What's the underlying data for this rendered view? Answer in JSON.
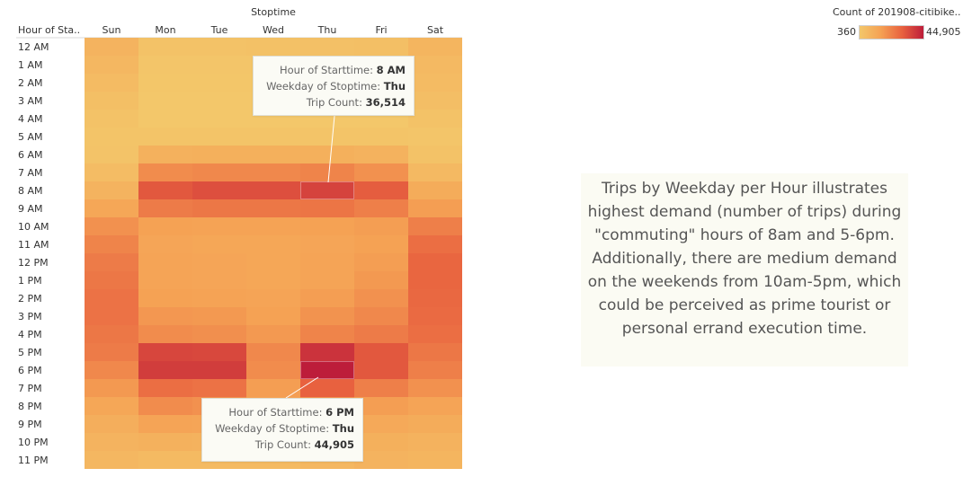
{
  "header": {
    "column_group_title": "Stoptime",
    "row_header": "Hour of Sta.."
  },
  "legend": {
    "title": "Count of 201908-citibike..",
    "min_label": "360",
    "max_label": "44,905",
    "colors": [
      "#f3c76a",
      "#f5a154",
      "#e8613f",
      "#bd1d3a"
    ]
  },
  "tooltips": [
    {
      "hour_label": "Hour of Starttime:",
      "hour_value": "8 AM",
      "weekday_label": "Weekday of Stoptime:",
      "weekday_value": "Thu",
      "count_label": "Trip Count:",
      "count_value": "36,514"
    },
    {
      "hour_label": "Hour of Starttime:",
      "hour_value": "6 PM",
      "weekday_label": "Weekday of Stoptime:",
      "weekday_value": "Thu",
      "count_label": "Trip Count:",
      "count_value": "44,905"
    }
  ],
  "annotation": {
    "text": "Trips by Weekday per Hour illustrates highest demand (number of trips) during \"commuting\" hours of 8am and 5-6pm.  Additionally, there are medium demand on the weekends from 10am-5pm, which could be perceived as prime tourist or personal errand execution time."
  },
  "chart_data": {
    "type": "heatmap",
    "title": "",
    "x_title": "Stoptime",
    "y_title": "Hour of Sta..",
    "columns": [
      "Sun",
      "Mon",
      "Tue",
      "Wed",
      "Thu",
      "Fri",
      "Sat"
    ],
    "rows": [
      "12 AM",
      "1 AM",
      "2 AM",
      "3 AM",
      "4 AM",
      "5 AM",
      "6 AM",
      "7 AM",
      "8 AM",
      "9 AM",
      "10 AM",
      "11 AM",
      "12 PM",
      "1 PM",
      "2 PM",
      "3 PM",
      "4 PM",
      "5 PM",
      "6 PM",
      "7 PM",
      "8 PM",
      "9 PM",
      "10 PM",
      "11 PM"
    ],
    "color_range": [
      360,
      44905
    ],
    "values": [
      [
        8000,
        2500,
        2500,
        2800,
        3000,
        3500,
        7500
      ],
      [
        6500,
        1200,
        1200,
        1300,
        1500,
        1800,
        6000
      ],
      [
        5000,
        700,
        700,
        800,
        900,
        1100,
        5000
      ],
      [
        3500,
        500,
        500,
        500,
        600,
        700,
        3800
      ],
      [
        2500,
        400,
        400,
        400,
        450,
        500,
        2500
      ],
      [
        1500,
        1500,
        1600,
        1600,
        1600,
        1500,
        1200
      ],
      [
        2000,
        9000,
        9500,
        9500,
        9500,
        8500,
        2500
      ],
      [
        4500,
        20000,
        21000,
        21000,
        22000,
        19000,
        6000
      ],
      [
        8000,
        32000,
        34000,
        34000,
        36514,
        31000,
        11000
      ],
      [
        13000,
        24000,
        25000,
        25000,
        25500,
        23000,
        16000
      ],
      [
        19000,
        15000,
        14500,
        14500,
        15000,
        16000,
        23000
      ],
      [
        22000,
        13500,
        13000,
        13000,
        13500,
        15000,
        27000
      ],
      [
        24000,
        14000,
        13500,
        13000,
        14000,
        16000,
        29000
      ],
      [
        25000,
        14000,
        13500,
        13000,
        14000,
        17000,
        29000
      ],
      [
        26000,
        15000,
        14500,
        14000,
        16000,
        19000,
        28500
      ],
      [
        26000,
        17500,
        17000,
        15000,
        18500,
        21000,
        28000
      ],
      [
        25000,
        20000,
        19500,
        17000,
        22000,
        24000,
        27000
      ],
      [
        24000,
        36000,
        35500,
        21000,
        40000,
        32000,
        25000
      ],
      [
        21000,
        38000,
        38000,
        20000,
        44905,
        32000,
        23000
      ],
      [
        17000,
        27000,
        26000,
        16000,
        30000,
        23000,
        19000
      ],
      [
        13000,
        20000,
        19000,
        13500,
        19000,
        16000,
        14000
      ],
      [
        10000,
        14000,
        13500,
        11000,
        13500,
        12000,
        11000
      ],
      [
        8000,
        9000,
        8500,
        8000,
        9500,
        9500,
        8500
      ],
      [
        6500,
        5500,
        5500,
        5500,
        6500,
        8000,
        7500
      ]
    ],
    "highlighted": [
      {
        "row": "8 AM",
        "column": "Thu",
        "value": 36514
      },
      {
        "row": "6 PM",
        "column": "Thu",
        "value": 44905
      }
    ]
  }
}
